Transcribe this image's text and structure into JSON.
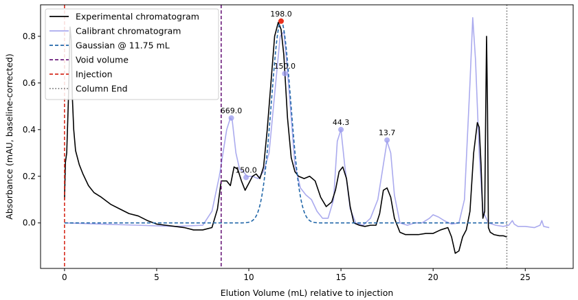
{
  "chart_data": {
    "type": "line",
    "xlabel": "Elution Volume (mL) relative to injection",
    "ylabel": "Absorbance (mAU, baseline-corrected)",
    "xlim": [
      -1.3,
      27.6
    ],
    "ylim": [
      -0.195,
      0.935
    ],
    "xticks": [
      0,
      5,
      10,
      15,
      20,
      25
    ],
    "yticks": [
      0.0,
      0.2,
      0.4,
      0.6,
      0.8
    ],
    "ytick_labels": [
      "0.0",
      "0.2",
      "0.4",
      "0.6",
      "0.8"
    ],
    "legend_position": "upper-left",
    "colors": {
      "experimental": "#000000",
      "calibrant": "#aaaaee",
      "gaussian": "#2066a8",
      "void": "#6a1a7a",
      "injection": "#d62a1c",
      "column_end": "#777777",
      "marker": "#9a9aee",
      "apex": "#e8301c"
    },
    "series": [
      {
        "name": "Experimental chromatogram",
        "key": "experimental",
        "style": "solid",
        "x": [
          0,
          0.05,
          0.12,
          0.22,
          0.3,
          0.37,
          0.42,
          0.5,
          0.6,
          0.8,
          1.0,
          1.3,
          1.6,
          2.0,
          2.5,
          3.0,
          3.5,
          4.0,
          4.5,
          5.0,
          5.5,
          6.0,
          6.5,
          7.0,
          7.5,
          8.0,
          8.3,
          8.5,
          8.8,
          9.0,
          9.2,
          9.4,
          9.6,
          9.8,
          10.0,
          10.2,
          10.4,
          10.6,
          10.8,
          11.0,
          11.2,
          11.4,
          11.6,
          11.75,
          11.9,
          12.1,
          12.3,
          12.5,
          12.7,
          13.0,
          13.3,
          13.6,
          13.9,
          14.2,
          14.5,
          14.7,
          14.9,
          15.1,
          15.3,
          15.5,
          15.7,
          16.0,
          16.3,
          16.6,
          16.9,
          17.1,
          17.3,
          17.5,
          17.7,
          17.9,
          18.2,
          18.5,
          18.8,
          19.2,
          19.6,
          20.0,
          20.4,
          20.8,
          21.0,
          21.2,
          21.4,
          21.6,
          21.8,
          22.0,
          22.2,
          22.4,
          22.5,
          22.6,
          22.7,
          22.8,
          22.85,
          22.9,
          22.95,
          23.0,
          23.1,
          23.3,
          23.6,
          23.8,
          24.0
        ],
        "y": [
          0.1,
          0.26,
          0.3,
          0.55,
          0.84,
          0.78,
          0.55,
          0.4,
          0.31,
          0.25,
          0.21,
          0.16,
          0.13,
          0.11,
          0.08,
          0.06,
          0.04,
          0.03,
          0.01,
          -0.005,
          -0.01,
          -0.015,
          -0.02,
          -0.03,
          -0.03,
          -0.02,
          0.06,
          0.18,
          0.18,
          0.16,
          0.24,
          0.23,
          0.18,
          0.14,
          0.17,
          0.2,
          0.21,
          0.19,
          0.24,
          0.4,
          0.6,
          0.8,
          0.86,
          0.83,
          0.72,
          0.45,
          0.28,
          0.22,
          0.2,
          0.19,
          0.2,
          0.18,
          0.11,
          0.07,
          0.09,
          0.14,
          0.22,
          0.24,
          0.19,
          0.07,
          0.0,
          -0.01,
          -0.015,
          -0.01,
          -0.01,
          0.04,
          0.14,
          0.15,
          0.11,
          0.02,
          -0.04,
          -0.05,
          -0.05,
          -0.05,
          -0.045,
          -0.045,
          -0.03,
          -0.02,
          -0.06,
          -0.13,
          -0.12,
          -0.06,
          -0.03,
          0.05,
          0.3,
          0.43,
          0.41,
          0.25,
          0.02,
          0.05,
          0.45,
          0.8,
          0.5,
          -0.02,
          -0.04,
          -0.05,
          -0.055,
          -0.055,
          -0.06
        ]
      },
      {
        "name": "Calibrant chromatogram",
        "key": "calibrant",
        "style": "solid",
        "x": [
          0,
          2.0,
          4.0,
          6.0,
          7.5,
          8.0,
          8.4,
          8.8,
          9.0,
          9.1,
          9.3,
          9.5,
          9.7,
          9.9,
          10.2,
          10.5,
          10.8,
          11.1,
          11.4,
          11.7,
          11.9,
          12.1,
          12.3,
          12.5,
          12.8,
          13.1,
          13.4,
          13.7,
          14.0,
          14.3,
          14.6,
          14.8,
          15.0,
          15.2,
          15.5,
          15.8,
          16.2,
          16.6,
          17.0,
          17.3,
          17.5,
          17.7,
          17.9,
          18.2,
          18.6,
          19.0,
          19.4,
          19.8,
          20.0,
          20.3,
          20.6,
          21.0,
          21.4,
          21.7,
          22.0,
          22.15,
          22.3,
          22.5,
          22.7,
          23.0,
          23.4,
          23.8,
          24.1,
          24.3,
          24.4,
          24.6,
          25.0,
          25.5,
          25.8,
          25.9,
          26.0,
          26.3
        ],
        "y": [
          0.0,
          -0.005,
          -0.01,
          -0.015,
          -0.01,
          0.05,
          0.2,
          0.4,
          0.45,
          0.44,
          0.3,
          0.23,
          0.22,
          0.2,
          0.2,
          0.19,
          0.22,
          0.3,
          0.55,
          0.8,
          0.82,
          0.65,
          0.45,
          0.25,
          0.15,
          0.12,
          0.1,
          0.05,
          0.02,
          0.02,
          0.1,
          0.35,
          0.4,
          0.25,
          0.06,
          0.0,
          -0.01,
          0.02,
          0.1,
          0.25,
          0.35,
          0.3,
          0.12,
          0.0,
          -0.01,
          0.0,
          0.0,
          0.02,
          0.035,
          0.025,
          0.01,
          -0.005,
          0.0,
          0.1,
          0.6,
          0.88,
          0.7,
          0.3,
          0.05,
          0.0,
          -0.01,
          -0.015,
          -0.01,
          0.01,
          -0.005,
          -0.015,
          -0.015,
          -0.02,
          -0.01,
          0.01,
          -0.015,
          -0.02
        ]
      },
      {
        "name": "Gaussian @ 11.75 mL",
        "key": "gaussian",
        "style": "dashed",
        "gaussian": {
          "center": 11.75,
          "amplitude": 0.865,
          "sigma": 0.52,
          "x_start": 0,
          "x_end": 24
        }
      }
    ],
    "vlines": [
      {
        "name": "Void volume",
        "key": "void",
        "x": 8.5,
        "style": "dashed"
      },
      {
        "name": "Injection",
        "key": "injection",
        "x": 0,
        "style": "dashed"
      },
      {
        "name": "Column End",
        "key": "column_end",
        "x": 24,
        "style": "dotted"
      }
    ],
    "calibrant_peaks": [
      {
        "x": 9.05,
        "y": 0.45,
        "label": "669.0"
      },
      {
        "x": 9.85,
        "y": 0.195,
        "label": "150.0"
      },
      {
        "x": 11.95,
        "y": 0.64,
        "label": "150.0"
      },
      {
        "x": 15.0,
        "y": 0.4,
        "label": "44.3"
      },
      {
        "x": 17.5,
        "y": 0.355,
        "label": "13.7"
      }
    ],
    "apex_marker": {
      "x": 11.75,
      "y": 0.865,
      "label": "198.0"
    },
    "legend": [
      {
        "label": "Experimental chromatogram",
        "key": "experimental",
        "style": "solid"
      },
      {
        "label": "Calibrant chromatogram",
        "key": "calibrant",
        "style": "solid"
      },
      {
        "label": "Gaussian @ 11.75 mL",
        "key": "gaussian",
        "style": "dashed"
      },
      {
        "label": "Void volume",
        "key": "void",
        "style": "dashed"
      },
      {
        "label": "Injection",
        "key": "injection",
        "style": "dashed"
      },
      {
        "label": "Column End",
        "key": "column_end",
        "style": "dotted"
      }
    ]
  }
}
